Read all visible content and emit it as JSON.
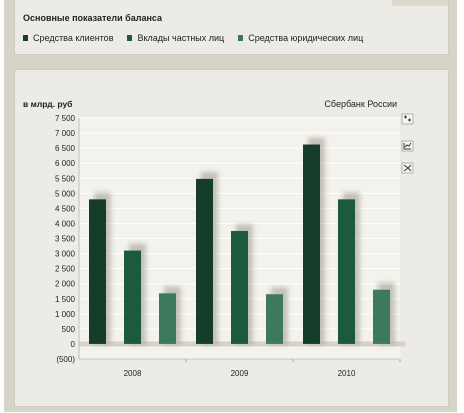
{
  "legend": {
    "title": "Основные показатели баланса",
    "items": [
      {
        "label": "Средства клиентов",
        "color": "#163d2a"
      },
      {
        "label": "Вклады частных лиц",
        "color": "#1d5a3c"
      },
      {
        "label": "Средства юридических лиц",
        "color": "#3d7a5c"
      }
    ]
  },
  "chart_data": {
    "type": "bar",
    "title": "",
    "ylabel": "в млрд. руб",
    "source": "Сбербанк России",
    "categories": [
      "2008",
      "2009",
      "2010"
    ],
    "series": [
      {
        "name": "Средства клиентов",
        "values": [
          4800,
          5480,
          6620
        ],
        "color": "#163d2a"
      },
      {
        "name": "Вклады частных лиц",
        "values": [
          3100,
          3750,
          4800
        ],
        "color": "#1d5a3c"
      },
      {
        "name": "Средства юридических лиц",
        "values": [
          1680,
          1650,
          1800
        ],
        "color": "#3d7a5c"
      }
    ],
    "ylim": [
      -500,
      7500
    ],
    "yticks": [
      -500,
      0,
      500,
      1000,
      1500,
      2000,
      2500,
      3000,
      3500,
      4000,
      4500,
      5000,
      5500,
      6000,
      6500,
      7000,
      7500
    ],
    "ytick_labels": [
      "(500)",
      "0",
      "500",
      "1 000",
      "1 500",
      "2 000",
      "2 500",
      "3 000",
      "3 500",
      "4 000",
      "4 500",
      "5 000",
      "5 500",
      "6 000",
      "6 500",
      "7 000",
      "7 500"
    ],
    "grid": true
  },
  "tools": [
    "zoom-in-icon",
    "line-chart-icon",
    "split-view-icon"
  ]
}
